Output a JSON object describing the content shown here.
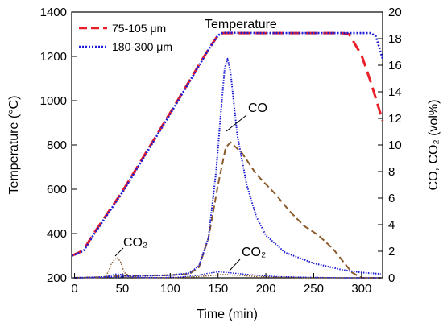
{
  "chart_data": {
    "type": "line",
    "xlabel": "Time (min)",
    "ylabel_left": "Temperature (°C)",
    "ylabel_right": "CO, CO₂ (vol%)",
    "xlim": [
      -3,
      322
    ],
    "ylim_left": [
      200,
      1400
    ],
    "ylim_right": [
      0,
      20
    ],
    "x_ticks": [
      0,
      50,
      100,
      150,
      200,
      250,
      300
    ],
    "y_left_ticks": [
      200,
      400,
      600,
      800,
      1000,
      1200,
      1400
    ],
    "y_right_ticks": [
      0,
      2,
      4,
      6,
      8,
      10,
      12,
      14,
      16,
      18,
      20
    ],
    "grid": false,
    "legend_position": "top-left",
    "legend": [
      {
        "label": "75-105 μm",
        "color": "#e8202a",
        "dash": "dashed"
      },
      {
        "label": "180-300 μm",
        "color": "#1c1cd6",
        "dash": "dotted"
      }
    ],
    "annotations": {
      "temperature": "Temperature",
      "co": "CO",
      "co2_left": "CO₂",
      "co2_right": "CO₂"
    },
    "series": [
      {
        "name": "75-105 μm",
        "quantity": "temperature",
        "axis": "left",
        "color": "#e8202a",
        "dash": "dashed",
        "x": [
          -3,
          5,
          10,
          20,
          50,
          100,
          140,
          150,
          155,
          200,
          250,
          280,
          287,
          300,
          310,
          322
        ],
        "y": [
          300,
          315,
          330,
          400,
          590,
          945,
          1232,
          1295,
          1305,
          1305,
          1305,
          1305,
          1300,
          1205,
          1080,
          910
        ]
      },
      {
        "name": "180-300 μm",
        "quantity": "temperature",
        "axis": "left",
        "color": "#1c1cd6",
        "dash": "dotted",
        "x": [
          -3,
          5,
          10,
          20,
          50,
          100,
          140,
          150,
          155,
          200,
          250,
          300,
          310,
          315,
          322
        ],
        "y": [
          300,
          312,
          325,
          395,
          585,
          940,
          1230,
          1295,
          1307,
          1305,
          1305,
          1305,
          1305,
          1290,
          1190
        ]
      },
      {
        "name": "75-105 μm",
        "quantity": "CO",
        "axis": "right",
        "color": "#8b5a2b",
        "dash": "dashed",
        "x": [
          0,
          25,
          50,
          100,
          120,
          130,
          140,
          150,
          158,
          163,
          175,
          190,
          210,
          225,
          240,
          255,
          270,
          280,
          290,
          300,
          320
        ],
        "y": [
          0,
          0.05,
          0.15,
          0.2,
          0.3,
          0.8,
          3.0,
          7.0,
          9.8,
          10.2,
          9.4,
          7.8,
          6.3,
          5.0,
          3.9,
          3.2,
          2.2,
          1.3,
          0.4,
          0,
          0
        ]
      },
      {
        "name": "180-300 μm",
        "quantity": "CO",
        "axis": "right",
        "color": "#1c1cd6",
        "dash": "dotted",
        "x": [
          0,
          25,
          50,
          100,
          120,
          130,
          140,
          148,
          153,
          157,
          160,
          163,
          166,
          170,
          180,
          190,
          200,
          220,
          250,
          280,
          300,
          320
        ],
        "y": [
          0,
          0.05,
          0.1,
          0.2,
          0.35,
          0.9,
          3.0,
          8.0,
          12.5,
          15.8,
          16.5,
          15.5,
          13.5,
          10.8,
          7.0,
          4.6,
          3.2,
          1.9,
          1.1,
          0.6,
          0.4,
          0.3
        ]
      },
      {
        "name": "75-105 μm",
        "quantity": "CO2",
        "axis": "right",
        "color": "#8b5a2b",
        "dash": "dotted",
        "x": [
          0,
          30,
          35,
          38,
          42,
          45,
          48,
          52,
          60,
          80,
          100,
          120,
          140,
          155,
          170,
          190,
          220,
          250,
          300,
          320
        ],
        "y": [
          0,
          0.05,
          0.4,
          1.0,
          1.4,
          1.5,
          1.2,
          0.4,
          0.05,
          0,
          0,
          0.05,
          0.15,
          0.25,
          0.2,
          0.1,
          0.05,
          0,
          0,
          0
        ]
      },
      {
        "name": "180-300 μm",
        "quantity": "CO2",
        "axis": "right",
        "color": "#1c1cd6",
        "dash": "dotted",
        "x": [
          0,
          30,
          38,
          44,
          50,
          55,
          60,
          70,
          90,
          110,
          130,
          140,
          150,
          160,
          175,
          190,
          210,
          240,
          280,
          320
        ],
        "y": [
          0,
          0.05,
          0.2,
          0.3,
          0.25,
          0.15,
          0.05,
          0.02,
          0.02,
          0.05,
          0.2,
          0.35,
          0.45,
          0.4,
          0.3,
          0.2,
          0.1,
          0.05,
          0,
          0
        ]
      }
    ]
  }
}
